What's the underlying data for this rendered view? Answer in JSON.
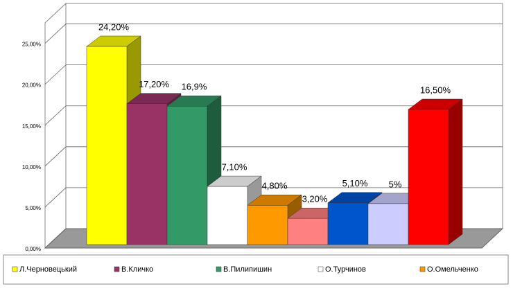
{
  "chart_data": {
    "type": "bar",
    "ylim": [
      0,
      27.5
    ],
    "yticks": [
      {
        "value": 0,
        "label": "0,00%"
      },
      {
        "value": 5,
        "label": "5,00%"
      },
      {
        "value": 10,
        "label": "10,00%"
      },
      {
        "value": 15,
        "label": "15,00%"
      },
      {
        "value": 20,
        "label": "20,00%"
      },
      {
        "value": 25,
        "label": "25,00%"
      }
    ],
    "grid": true,
    "legend": "bottom",
    "series": [
      {
        "name": "Л.Черновецький",
        "color": "#ffff00",
        "values": [
          24.2
        ],
        "value_labels": [
          "24,20%"
        ]
      },
      {
        "name": "В.Кличко",
        "color": "#993366",
        "values": [
          17.2
        ],
        "value_labels": [
          "17,20%"
        ]
      },
      {
        "name": "В.Пилипишин",
        "color": "#339966",
        "values": [
          16.9
        ],
        "value_labels": [
          "16,9%"
        ]
      },
      {
        "name": "О.Турчинов",
        "color": "#ffffff",
        "values": [
          7.1
        ],
        "value_labels": [
          "7,10%"
        ]
      },
      {
        "name": "О.Омельченко",
        "color": "#ff9900",
        "values": [
          4.8
        ],
        "value_labels": [
          "4,80%"
        ]
      },
      {
        "color": "#ff8080",
        "values": [
          3.2
        ],
        "value_labels": [
          "3,20%"
        ]
      },
      {
        "color": "#0055cc",
        "values": [
          5.1
        ],
        "value_labels": [
          "5,10%"
        ]
      },
      {
        "color": "#ccccff",
        "values": [
          5
        ],
        "value_labels": [
          "5%"
        ]
      },
      {
        "color": "#ff0000",
        "values": [
          16.5
        ],
        "value_labels": [
          "16,50%"
        ]
      }
    ]
  }
}
